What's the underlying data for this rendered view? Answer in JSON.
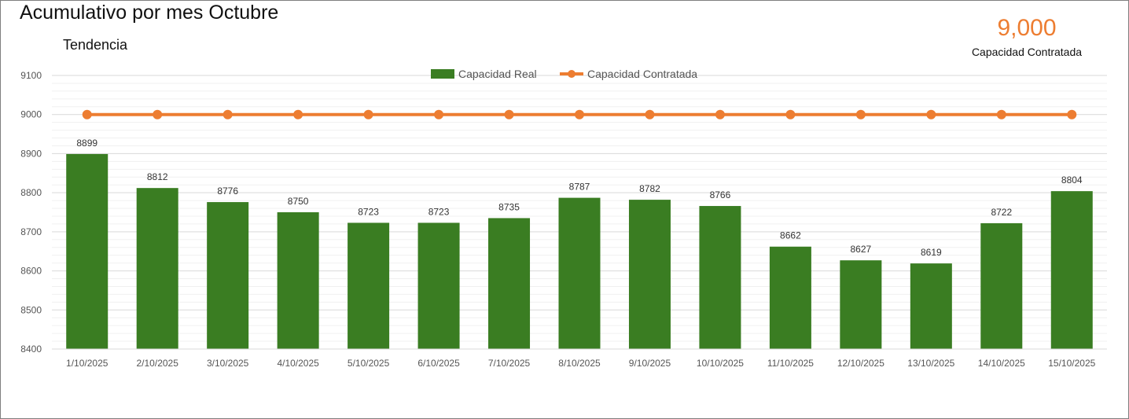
{
  "header": {
    "title": "Acumulativo por mes Octubre",
    "subtitle": "Tendencia"
  },
  "kpi": {
    "value": "9,000",
    "label": "Capacidad Contratada",
    "color": "#ed7d31"
  },
  "chart_data": {
    "type": "bar",
    "categories": [
      "1/10/2025",
      "2/10/2025",
      "3/10/2025",
      "4/10/2025",
      "5/10/2025",
      "6/10/2025",
      "7/10/2025",
      "8/10/2025",
      "9/10/2025",
      "10/10/2025",
      "11/10/2025",
      "12/10/2025",
      "13/10/2025",
      "14/10/2025",
      "15/10/2025"
    ],
    "series": [
      {
        "name": "Capacidad Real",
        "type": "bar",
        "color": "#3a7d22",
        "values": [
          8899,
          8812,
          8776,
          8750,
          8723,
          8723,
          8735,
          8787,
          8782,
          8766,
          8662,
          8627,
          8619,
          8722,
          8804
        ],
        "data_labels": true
      },
      {
        "name": "Capacidad Contratada",
        "type": "line",
        "color": "#ed7d31",
        "values": [
          9000,
          9000,
          9000,
          9000,
          9000,
          9000,
          9000,
          9000,
          9000,
          9000,
          9000,
          9000,
          9000,
          9000,
          9000
        ],
        "markers": true
      }
    ],
    "ylim": [
      8400,
      9100
    ],
    "yticks": [
      8400,
      8500,
      8600,
      8700,
      8800,
      8900,
      9000,
      9100
    ],
    "grid": true,
    "legend_position": "top-center"
  }
}
